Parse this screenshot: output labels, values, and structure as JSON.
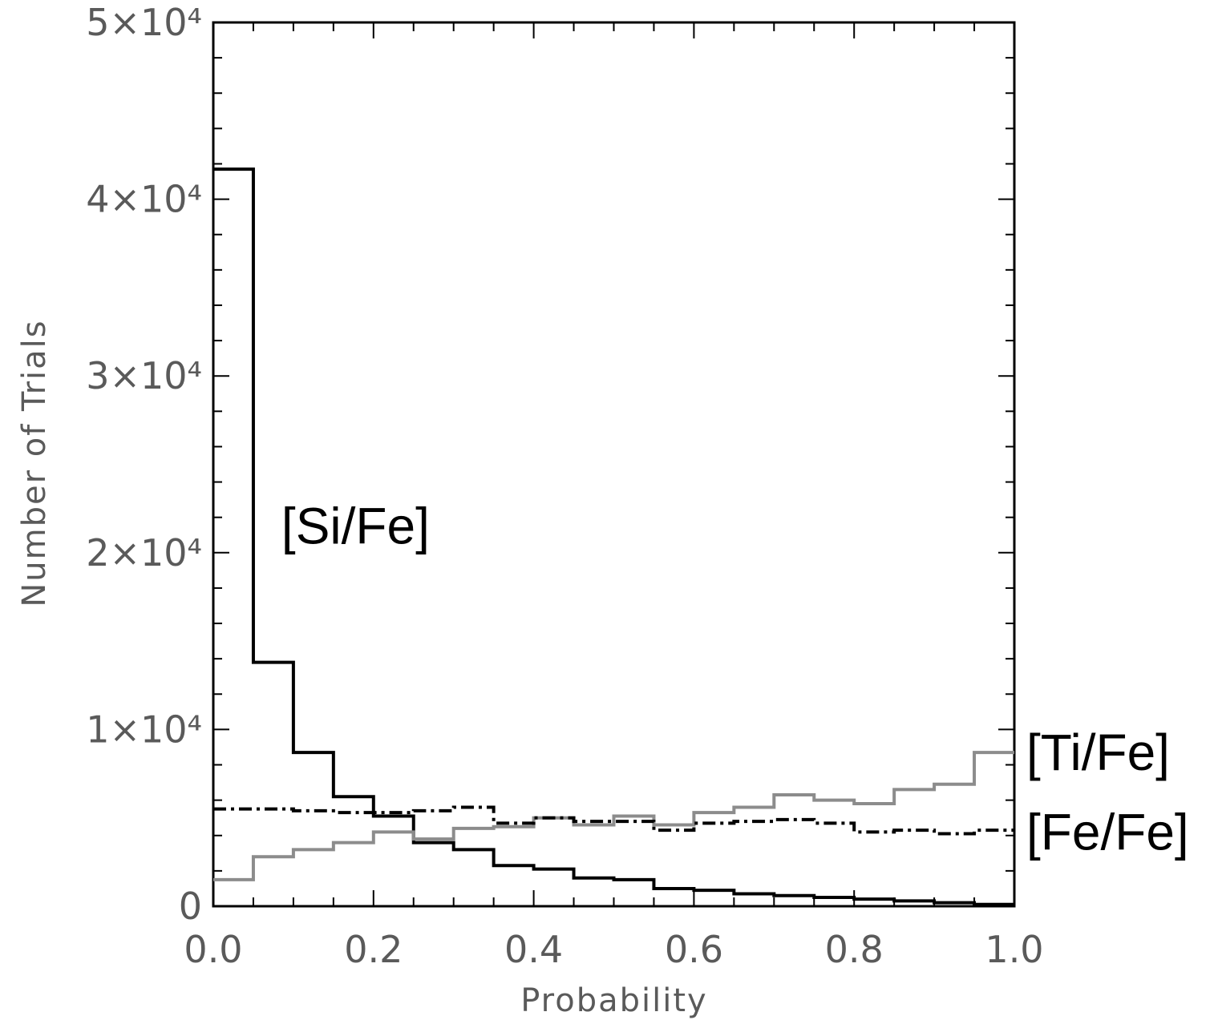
{
  "chart_data": {
    "type": "step-histogram",
    "xlabel": "Probability",
    "ylabel": "Number of Trials",
    "xlim": [
      0,
      1
    ],
    "ylim": [
      0,
      50000
    ],
    "bin_edges": [
      0,
      0.05,
      0.1,
      0.15,
      0.2,
      0.25,
      0.3,
      0.35,
      0.4,
      0.45,
      0.5,
      0.55,
      0.6,
      0.65,
      0.7,
      0.75,
      0.8,
      0.85,
      0.9,
      0.95,
      1.0
    ],
    "x_ticks": [
      {
        "value": 0.0,
        "label": "0.0"
      },
      {
        "value": 0.2,
        "label": "0.2"
      },
      {
        "value": 0.4,
        "label": "0.4"
      },
      {
        "value": 0.6,
        "label": "0.6"
      },
      {
        "value": 0.8,
        "label": "0.8"
      },
      {
        "value": 1.0,
        "label": "1.0"
      }
    ],
    "y_ticks": [
      {
        "value": 0,
        "label": "0"
      },
      {
        "value": 10000,
        "label": "1×10⁴"
      },
      {
        "value": 20000,
        "label": "2×10⁴"
      },
      {
        "value": 30000,
        "label": "3×10⁴"
      },
      {
        "value": 40000,
        "label": "4×10⁴"
      },
      {
        "value": 50000,
        "label": "5×10⁴"
      }
    ],
    "series": [
      {
        "name": "[Si/Fe]",
        "style": "solid",
        "color": "#000000",
        "values": [
          41700,
          13800,
          8700,
          6200,
          5100,
          3600,
          3200,
          2300,
          2100,
          1600,
          1500,
          1000,
          900,
          700,
          600,
          500,
          400,
          300,
          200,
          100
        ],
        "label_anchor": {
          "x": 0.085,
          "y": 21500
        }
      },
      {
        "name": "[Ti/Fe]",
        "style": "solid",
        "color": "#8c8c8c",
        "values": [
          1500,
          2800,
          3200,
          3600,
          4200,
          3800,
          4400,
          4500,
          5000,
          4600,
          5100,
          4600,
          5300,
          5600,
          6300,
          6000,
          5800,
          6600,
          6900,
          8700
        ],
        "label_anchor": {
          "x": 1.015,
          "y": 8700
        }
      },
      {
        "name": "[Fe/Fe]",
        "style": "dashdot",
        "color": "#000000",
        "values": [
          5500,
          5500,
          5400,
          5300,
          5300,
          5400,
          5600,
          4700,
          5000,
          4800,
          4800,
          4300,
          4700,
          4800,
          4900,
          4700,
          4200,
          4300,
          4100,
          4300
        ],
        "label_anchor": {
          "x": 1.015,
          "y": 4200
        }
      }
    ],
    "grid": false,
    "legend": "none"
  }
}
